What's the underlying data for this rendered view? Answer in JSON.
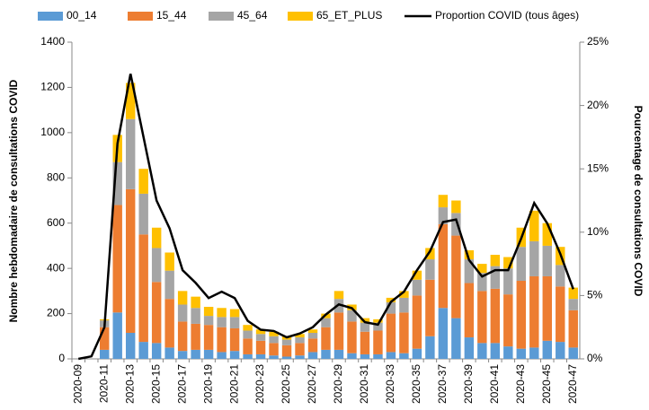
{
  "chart_data": {
    "type": "stacked-bar-line",
    "categories": [
      "2020-09",
      null,
      "2020-11",
      null,
      "2020-13",
      null,
      "2020-15",
      null,
      "2020-17",
      null,
      "2020-19",
      null,
      "2020-21",
      null,
      "2020-23",
      null,
      "2020-25",
      null,
      "2020-27",
      null,
      "2020-29",
      null,
      "2020-31",
      null,
      "2020-33",
      null,
      "2020-35",
      null,
      "2020-37",
      null,
      "2020-39",
      null,
      "2020-41",
      null,
      "2020-43",
      null,
      "2020-45",
      null,
      "2020-47"
    ],
    "y_label": "Nombre hebdomadaire de consultations COVID",
    "y2_label": "Pourcentage de consultations COVID",
    "ylim": [
      0,
      1400
    ],
    "yticks": [
      0,
      200,
      400,
      600,
      800,
      1000,
      1200,
      1400
    ],
    "y2lim": [
      0,
      25
    ],
    "y2ticks": [
      {
        "value": 0,
        "label": "0%"
      },
      {
        "value": 5,
        "label": "5%"
      },
      {
        "value": 10,
        "label": "10%"
      },
      {
        "value": 15,
        "label": "15%"
      },
      {
        "value": 20,
        "label": "20%"
      },
      {
        "value": 25,
        "label": "25%"
      }
    ],
    "series": [
      {
        "name": "00_14",
        "color": "#5b9bd5",
        "values": [
          0,
          0,
          40,
          205,
          115,
          75,
          70,
          50,
          35,
          40,
          40,
          30,
          35,
          20,
          20,
          15,
          10,
          15,
          30,
          40,
          40,
          25,
          20,
          20,
          30,
          25,
          45,
          100,
          225,
          180,
          95,
          70,
          70,
          55,
          45,
          50,
          80,
          75,
          50
        ]
      },
      {
        "name": "15_44",
        "color": "#ed7d31",
        "values": [
          0,
          0,
          100,
          475,
          635,
          475,
          270,
          215,
          130,
          115,
          110,
          110,
          100,
          70,
          60,
          55,
          50,
          55,
          60,
          100,
          165,
          140,
          100,
          105,
          170,
          180,
          235,
          250,
          370,
          365,
          240,
          230,
          240,
          230,
          300,
          315,
          285,
          245,
          165
        ]
      },
      {
        "name": "45_64",
        "color": "#a5a5a5",
        "values": [
          0,
          0,
          30,
          190,
          310,
          180,
          150,
          125,
          75,
          70,
          40,
          45,
          50,
          35,
          30,
          30,
          25,
          25,
          25,
          40,
          60,
          50,
          40,
          35,
          50,
          65,
          70,
          90,
          75,
          100,
          105,
          80,
          100,
          115,
          150,
          155,
          135,
          95,
          50
        ]
      },
      {
        "name": "65_ET_PLUS",
        "color": "#ffc000",
        "values": [
          0,
          0,
          5,
          120,
          160,
          110,
          90,
          80,
          60,
          50,
          40,
          40,
          35,
          25,
          20,
          20,
          15,
          15,
          15,
          20,
          35,
          25,
          20,
          15,
          20,
          30,
          40,
          50,
          55,
          55,
          40,
          40,
          50,
          50,
          85,
          135,
          100,
          80,
          50
        ]
      },
      {
        "name": "Proportion COVID (tous âges)",
        "color": "#000000",
        "axis": "y2",
        "values": [
          0,
          0.2,
          2.5,
          17,
          22.5,
          17.5,
          12.5,
          10.3,
          7,
          6,
          4.8,
          5.3,
          4.8,
          3,
          2.3,
          2.2,
          1.7,
          2,
          2.5,
          3.5,
          4.3,
          4,
          2.9,
          2.7,
          4.5,
          5.3,
          7,
          8.5,
          10.8,
          11,
          7.8,
          6.5,
          7,
          7,
          9.5,
          12.3,
          10.7,
          8.3,
          5.5
        ]
      }
    ]
  }
}
